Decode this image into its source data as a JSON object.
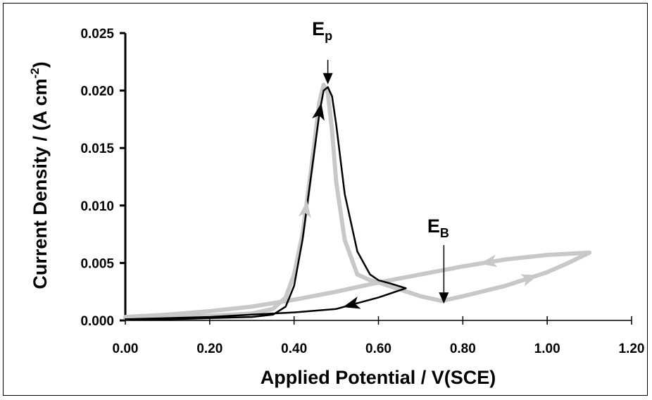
{
  "chart_data": {
    "type": "line",
    "title": "",
    "xlabel": "Applied Potential / V(SCE)",
    "ylabel": "Current Density / (A cm",
    "ylabel_sup": "-2",
    "ylabel_tail": ")",
    "xlim": [
      0.0,
      1.2
    ],
    "ylim": [
      0.0,
      0.025
    ],
    "x_ticks": [
      "0.00",
      "0.20",
      "0.40",
      "0.60",
      "0.80",
      "1.00",
      "1.20"
    ],
    "y_ticks": [
      "0.000",
      "0.005",
      "0.010",
      "0.015",
      "0.020",
      "0.025"
    ],
    "grid": false,
    "colors": {
      "first_scan": "#c8c8c8",
      "second_scan": "#000000",
      "axis": "#000000"
    },
    "series": [
      {
        "x": [
          0.0,
          0.1,
          0.2,
          0.3,
          0.35,
          0.38,
          0.4,
          0.42,
          0.44,
          0.46,
          0.47,
          0.48,
          0.49,
          0.5,
          0.52,
          0.55,
          0.58,
          0.6,
          0.65,
          0.7,
          0.75,
          0.8,
          0.9,
          1.0,
          1.05,
          1.1,
          1.0,
          0.9,
          0.8,
          0.7,
          0.6,
          0.5,
          0.4,
          0.3,
          0.2,
          0.1,
          0.0
        ],
        "y": [
          0.0002,
          0.0003,
          0.0004,
          0.0006,
          0.001,
          0.002,
          0.004,
          0.0075,
          0.013,
          0.019,
          0.0205,
          0.0198,
          0.0165,
          0.012,
          0.007,
          0.004,
          0.0035,
          0.0033,
          0.0027,
          0.0021,
          0.0017,
          0.0021,
          0.003,
          0.0042,
          0.005,
          0.0059,
          0.0057,
          0.0053,
          0.0047,
          0.004,
          0.0033,
          0.0025,
          0.0018,
          0.0012,
          0.0008,
          0.0005,
          0.0003
        ]
      },
      {
        "x": [
          0.0,
          0.1,
          0.2,
          0.3,
          0.35,
          0.38,
          0.4,
          0.42,
          0.44,
          0.46,
          0.47,
          0.48,
          0.49,
          0.5,
          0.52,
          0.55,
          0.58,
          0.6,
          0.63,
          0.665,
          0.6,
          0.55,
          0.5,
          0.4,
          0.3,
          0.2,
          0.1,
          0.0
        ],
        "y": [
          0.0001,
          0.0001,
          0.0002,
          0.0003,
          0.0005,
          0.0012,
          0.003,
          0.007,
          0.0125,
          0.018,
          0.02,
          0.0203,
          0.0195,
          0.017,
          0.011,
          0.006,
          0.004,
          0.0035,
          0.0032,
          0.0028,
          0.002,
          0.0015,
          0.001,
          0.0007,
          0.0005,
          0.0003,
          0.0002,
          0.0001
        ]
      }
    ],
    "annotations": [
      {
        "text": "E",
        "sub": "p",
        "x": 0.48,
        "y": 0.0203
      },
      {
        "text": "E",
        "sub": "B",
        "x": 0.755,
        "y": 0.0017
      }
    ]
  }
}
